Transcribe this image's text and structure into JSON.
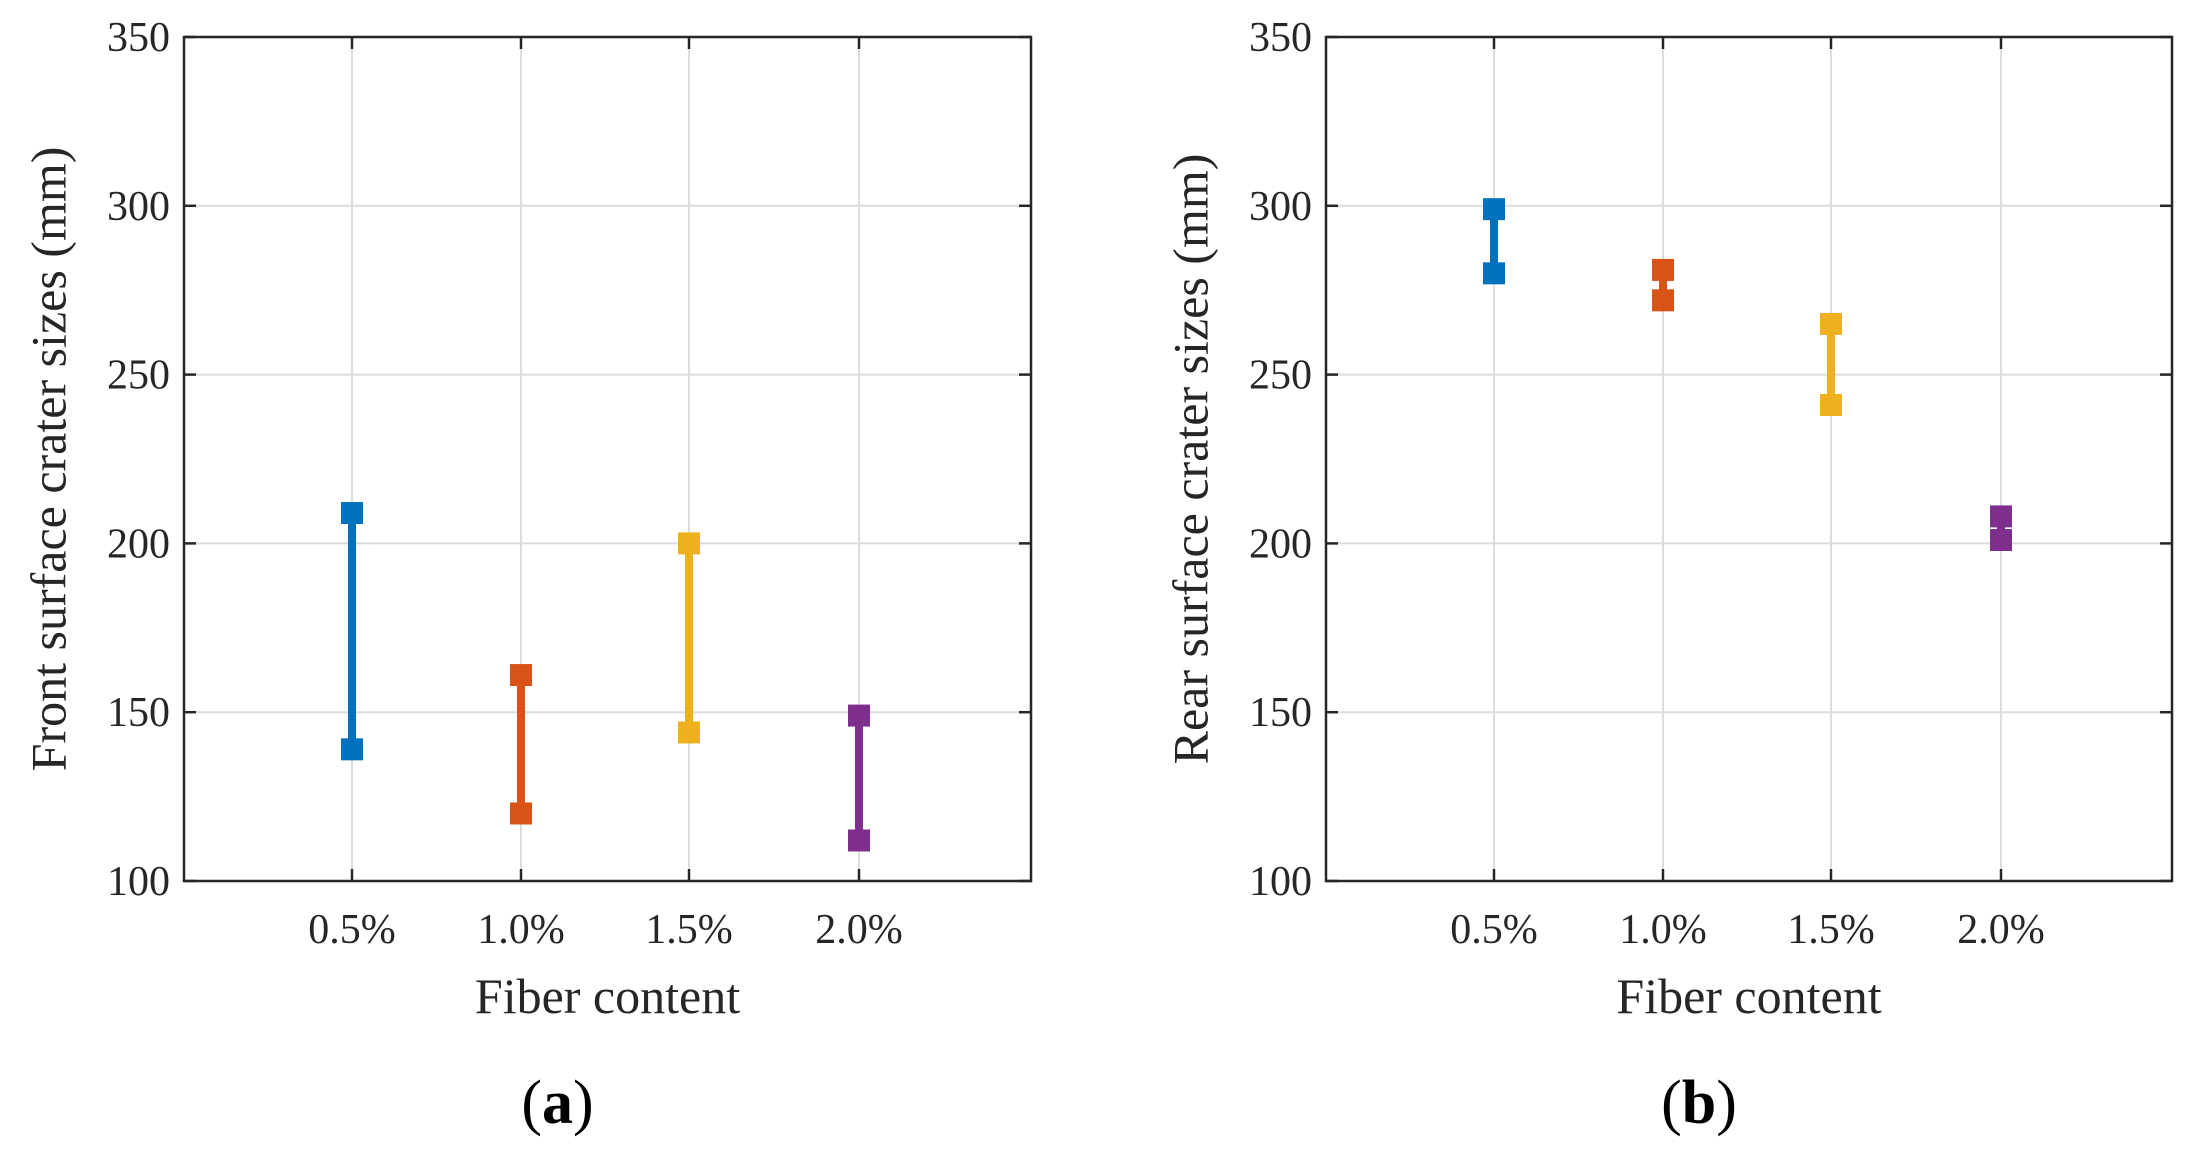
{
  "chart_data": [
    {
      "type": "range",
      "panel_label": "(a)",
      "panel_letter": "a",
      "xlabel": "Fiber content",
      "ylabel": "Front surface crater sizes (mm)",
      "categories": [
        "0.5%",
        "1.0%",
        "1.5%",
        "2.0%"
      ],
      "ylim": [
        100,
        350
      ],
      "yticks": [
        100,
        150,
        200,
        250,
        300,
        350
      ],
      "grid": true,
      "series": [
        {
          "name": "0.5%",
          "min": 139,
          "max": 209,
          "color": "#0072BD"
        },
        {
          "name": "1.0%",
          "min": 120,
          "max": 161,
          "color": "#D95319"
        },
        {
          "name": "1.5%",
          "min": 144,
          "max": 200,
          "color": "#EDB120"
        },
        {
          "name": "2.0%",
          "min": 112,
          "max": 149,
          "color": "#7E2F8E"
        }
      ]
    },
    {
      "type": "range",
      "panel_label": "(b)",
      "panel_letter": "b",
      "xlabel": "Fiber content",
      "ylabel": "Rear surface crater sizes (mm)",
      "categories": [
        "0.5%",
        "1.0%",
        "1.5%",
        "2.0%"
      ],
      "ylim": [
        100,
        350
      ],
      "yticks": [
        100,
        150,
        200,
        250,
        300,
        350
      ],
      "grid": true,
      "series": [
        {
          "name": "0.5%",
          "min": 280,
          "max": 299,
          "color": "#0072BD"
        },
        {
          "name": "1.0%",
          "min": 272,
          "max": 281,
          "color": "#D95319"
        },
        {
          "name": "1.5%",
          "min": 241,
          "max": 265,
          "color": "#EDB120"
        },
        {
          "name": "2.0%",
          "min": 201,
          "max": 208,
          "color": "#7E2F8E"
        }
      ]
    }
  ]
}
